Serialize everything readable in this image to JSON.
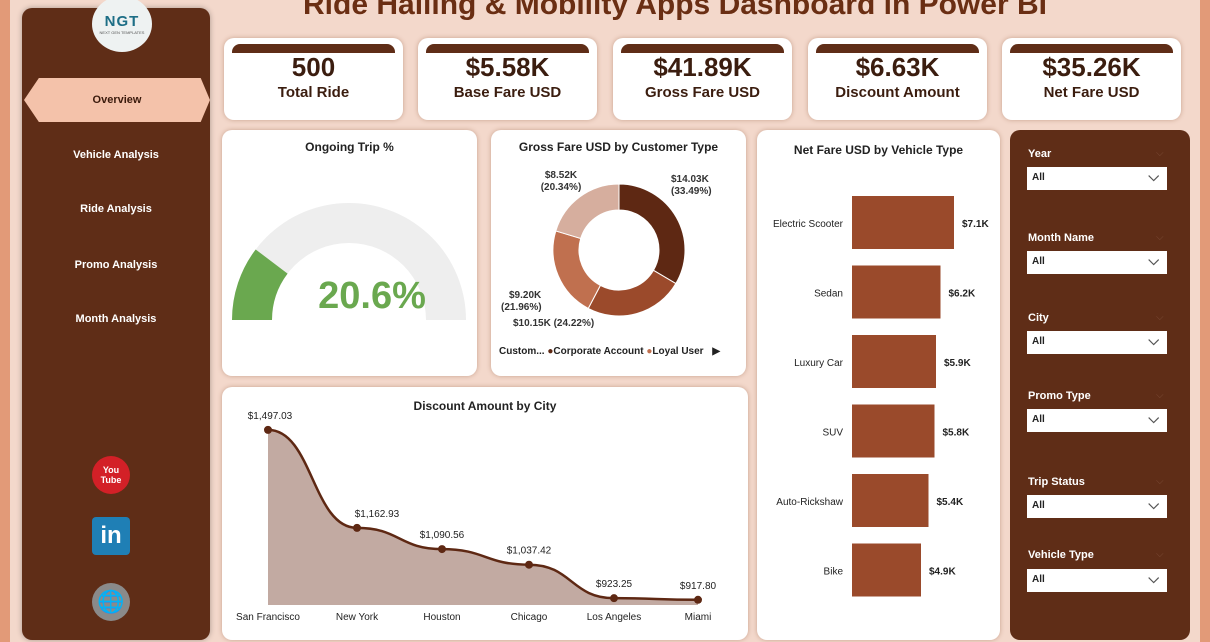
{
  "title": "Ride Hailing & Mobility Apps Dashboard in Power BI",
  "logo": {
    "text": "NGT",
    "sub": "NEXT GEN TEMPLATES"
  },
  "nav": [
    "Overview",
    "Vehicle Analysis",
    "Ride Analysis",
    "Promo Analysis",
    "Month Analysis"
  ],
  "social": {
    "youtube": "You Tube",
    "linkedin": "in"
  },
  "kpis": [
    {
      "value": "500",
      "label": "Total Ride"
    },
    {
      "value": "$5.58K",
      "label": "Base Fare USD"
    },
    {
      "value": "$41.89K",
      "label": "Gross Fare USD"
    },
    {
      "value": "$6.63K",
      "label": "Discount Amount"
    },
    {
      "value": "$35.26K",
      "label": "Net Fare USD"
    }
  ],
  "gauge": {
    "title": "Ongoing Trip %",
    "value_label": "20.6%",
    "value": 20.6,
    "color": "#6aa84f"
  },
  "filters": [
    {
      "label": "Year",
      "value": "All"
    },
    {
      "label": "Month Name",
      "value": "All"
    },
    {
      "label": "City",
      "value": "All"
    },
    {
      "label": "Promo Type",
      "value": "All"
    },
    {
      "label": "Trip Status",
      "value": "All"
    },
    {
      "label": "Vehicle Type",
      "value": "All"
    }
  ],
  "chart_data": [
    {
      "type": "pie",
      "title": "Gross Fare USD by Customer Type",
      "legend_title": "Custom...",
      "legend": [
        "Corporate Account",
        "Loyal User"
      ],
      "slices": [
        {
          "name": "Corporate Account",
          "value": 14.03,
          "label": "$14.03K",
          "pct": "(33.49%)",
          "color": "#5e2813"
        },
        {
          "name": "Loyal User",
          "value": 10.15,
          "label": "$10.15K (24.22%)",
          "pct": "",
          "color": "#9b4a2b"
        },
        {
          "name": "",
          "value": 9.2,
          "label": "$9.20K",
          "pct": "(21.96%)",
          "color": "#c0704f"
        },
        {
          "name": "",
          "value": 8.52,
          "label": "$8.52K",
          "pct": "(20.34%)",
          "color": "#d6ae9e"
        }
      ]
    },
    {
      "type": "bar",
      "title": "Net Fare USD by Vehicle Type",
      "categories": [
        "Electric Scooter",
        "Sedan",
        "Luxury Car",
        "SUV",
        "Auto-Rickshaw",
        "Bike"
      ],
      "values": [
        7.1,
        6.2,
        5.9,
        5.8,
        5.4,
        4.9
      ],
      "labels": [
        "$7.1K",
        "$6.2K",
        "$5.9K",
        "$5.8K",
        "$5.4K",
        "$4.9K"
      ],
      "xlim": [
        0.3,
        8
      ],
      "color": "#9a4a2b"
    },
    {
      "type": "area",
      "title": "Discount Amount by City",
      "categories": [
        "San Francisco",
        "New York",
        "Houston",
        "Chicago",
        "Los Angeles",
        "Miami"
      ],
      "values": [
        1497.03,
        1162.93,
        1090.56,
        1037.42,
        923.25,
        917.8
      ],
      "labels": [
        "$1,497.03",
        "$1,162.93",
        "$1,090.56",
        "$1,037.42",
        "$923.25",
        "$917.80"
      ],
      "ylim": [
        900,
        1500
      ],
      "color": "#5e2813",
      "fill": "#c2aaa2"
    }
  ]
}
